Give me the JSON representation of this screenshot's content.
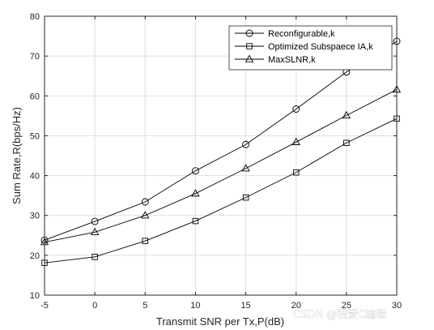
{
  "chart_data": {
    "type": "line",
    "title": "",
    "xlabel": "Transmit SNR per Tx,P(dB)",
    "ylabel": "Sum Rate,R(bps/Hz)",
    "xlim": [
      -5,
      30
    ],
    "ylim": [
      10,
      80
    ],
    "xticks": [
      -5,
      0,
      5,
      10,
      15,
      20,
      25,
      30
    ],
    "yticks": [
      10,
      20,
      30,
      40,
      50,
      60,
      70,
      80
    ],
    "grid": true,
    "legend_position": "top-right",
    "x": [
      -5,
      0,
      5,
      10,
      15,
      20,
      25,
      30
    ],
    "series": [
      {
        "name": "Reconfigurable,k",
        "marker": "circle",
        "values": [
          23.8,
          28.5,
          33.4,
          41.2,
          47.8,
          56.7,
          66.0,
          73.7
        ]
      },
      {
        "name": "Optimized Subspaece IA,k",
        "marker": "square",
        "values": [
          18.1,
          19.6,
          23.6,
          28.6,
          34.5,
          40.8,
          48.2,
          54.3
        ]
      },
      {
        "name": "MaxSLNR,k",
        "marker": "triangle",
        "values": [
          23.3,
          25.8,
          30.0,
          35.5,
          41.8,
          48.4,
          55.1,
          61.6
        ]
      }
    ],
    "line_color": "#000000"
  },
  "watermark": "CSDN @我爱C编程"
}
